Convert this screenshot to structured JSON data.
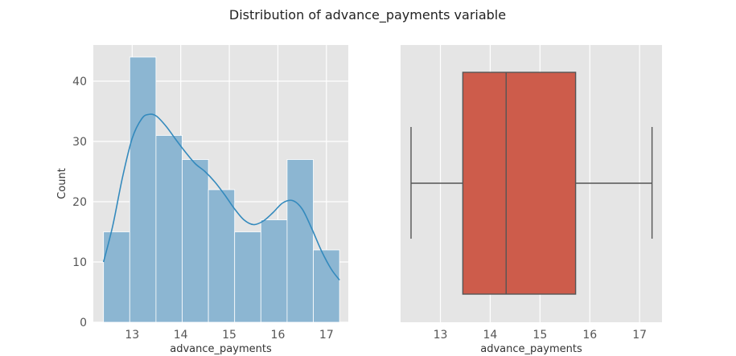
{
  "figure": {
    "title": "Distribution of advance_payments variable"
  },
  "chart_data": [
    {
      "type": "histogram",
      "xlabel": "advance_payments",
      "ylabel": "Count",
      "xlim": [
        12.2,
        17.45
      ],
      "ylim": [
        0,
        46
      ],
      "xticks": [
        13,
        14,
        15,
        16,
        17
      ],
      "yticks": [
        0,
        10,
        20,
        30,
        40
      ],
      "bins": [
        {
          "start": 12.41,
          "end": 12.95,
          "count": 15
        },
        {
          "start": 12.95,
          "end": 13.49,
          "count": 44
        },
        {
          "start": 13.49,
          "end": 14.03,
          "count": 31
        },
        {
          "start": 14.03,
          "end": 14.57,
          "count": 27
        },
        {
          "start": 14.57,
          "end": 15.11,
          "count": 22
        },
        {
          "start": 15.11,
          "end": 15.65,
          "count": 15
        },
        {
          "start": 15.65,
          "end": 16.19,
          "count": 17
        },
        {
          "start": 16.19,
          "end": 16.73,
          "count": 27
        },
        {
          "start": 16.73,
          "end": 17.27,
          "count": 12
        }
      ],
      "kde": {
        "x": [
          12.41,
          12.6,
          12.8,
          13.0,
          13.2,
          13.35,
          13.5,
          13.7,
          13.9,
          14.1,
          14.3,
          14.5,
          14.7,
          14.9,
          15.1,
          15.3,
          15.5,
          15.7,
          15.9,
          16.1,
          16.3,
          16.5,
          16.7,
          16.9,
          17.1,
          17.27
        ],
        "y": [
          10,
          16,
          24,
          30.5,
          33.8,
          34.5,
          34.2,
          32.5,
          30.3,
          28.2,
          26.3,
          25,
          23.3,
          21.2,
          18.9,
          17,
          16.2,
          16.8,
          18.2,
          19.8,
          20.2,
          18.8,
          15.5,
          11.8,
          8.8,
          7
        ]
      },
      "colors": {
        "bar": "#8cb6d2",
        "bar_edge": "#ffffff",
        "kde": "#348abd",
        "background": "#e5e5e5",
        "grid": "#ffffff"
      }
    },
    {
      "type": "box",
      "xlabel": "advance_payments",
      "xlim": [
        12.2,
        17.45
      ],
      "xticks": [
        13,
        14,
        15,
        16,
        17
      ],
      "stats": {
        "whisker_low": 12.41,
        "q1": 13.45,
        "median": 14.32,
        "q3": 15.715,
        "whisker_high": 17.25
      },
      "colors": {
        "box": "#cd5c4b",
        "line": "#555555",
        "background": "#e5e5e5",
        "grid": "#ffffff"
      }
    }
  ]
}
